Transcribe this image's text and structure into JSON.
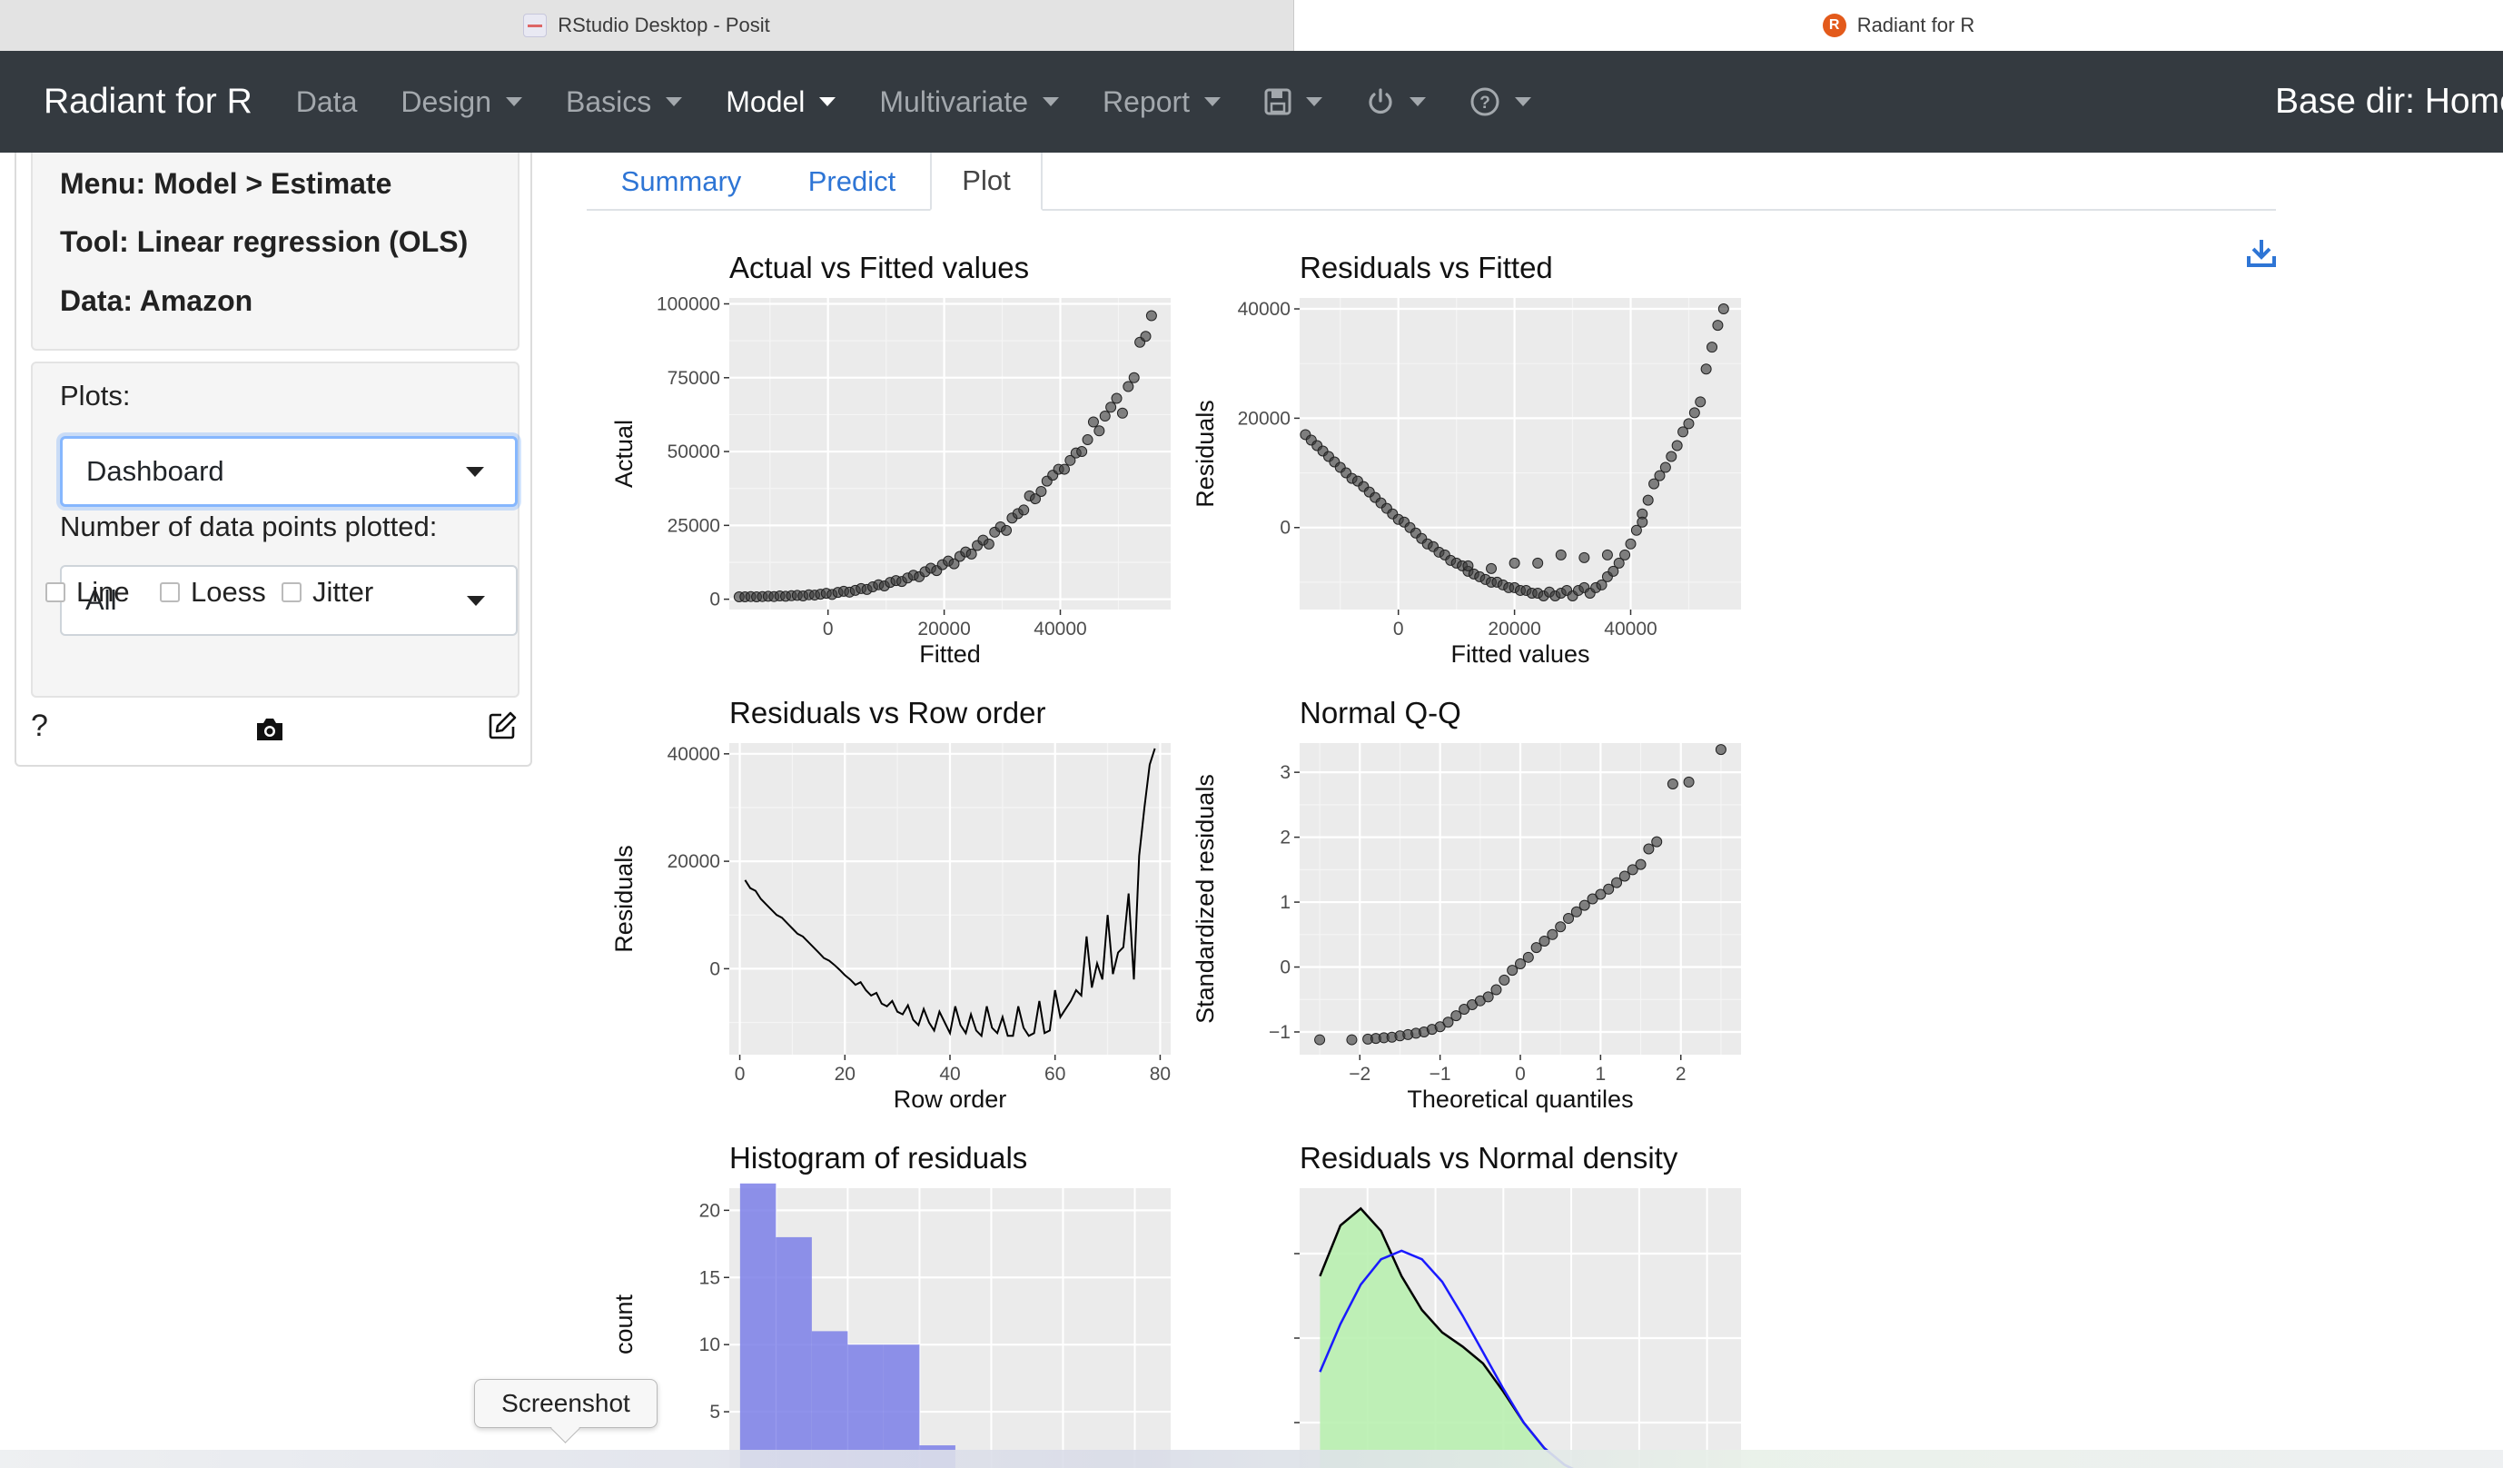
{
  "browser": {
    "tabs": [
      {
        "title": "RStudio Desktop - Posit",
        "active": false
      },
      {
        "title": "Radiant for R",
        "active": true
      }
    ]
  },
  "navbar": {
    "brand": "Radiant for R",
    "items": [
      {
        "label": "Data",
        "dropdown": false,
        "active": false
      },
      {
        "label": "Design",
        "dropdown": true,
        "active": false
      },
      {
        "label": "Basics",
        "dropdown": true,
        "active": false
      },
      {
        "label": "Model",
        "dropdown": true,
        "active": true
      },
      {
        "label": "Multivariate",
        "dropdown": true,
        "active": false
      },
      {
        "label": "Report",
        "dropdown": true,
        "active": false
      }
    ],
    "icons": [
      "save-icon",
      "power-icon",
      "help-icon"
    ],
    "base_dir": "Base dir: Home"
  },
  "sidebar": {
    "menu": "Menu: Model > Estimate",
    "tool": "Tool: Linear regression (OLS)",
    "data": "Data: Amazon",
    "plots_label": "Plots:",
    "plots_value": "Dashboard",
    "points_label": "Number of data points plotted:",
    "points_value": "All",
    "checkboxes": [
      {
        "label": "Line",
        "checked": false
      },
      {
        "label": "Loess",
        "checked": false
      },
      {
        "label": "Jitter",
        "checked": false
      }
    ],
    "help": "?"
  },
  "main": {
    "tabs": [
      "Summary",
      "Predict",
      "Plot"
    ],
    "active_tab": "Plot"
  },
  "tooltip": "Screenshot",
  "chart_data": [
    {
      "type": "scatter",
      "title": "Actual vs Fitted values",
      "xlabel": "Fitted",
      "ylabel": "Actual",
      "xlim": [
        -17000,
        59000
      ],
      "ylim": [
        -3500,
        102000
      ],
      "xticks": [
        0,
        20000,
        40000
      ],
      "yticks": [
        0,
        25000,
        50000,
        75000,
        100000
      ],
      "x": [
        -15300,
        -14300,
        -13300,
        -12300,
        -11300,
        -10300,
        -9300,
        -8300,
        -7300,
        -6300,
        -5300,
        -4300,
        -3300,
        -2300,
        -1300,
        -300,
        700,
        1700,
        2700,
        3700,
        4700,
        5700,
        6700,
        7700,
        8700,
        9700,
        10700,
        11700,
        12700,
        13700,
        14700,
        15700,
        16700,
        17700,
        18700,
        19700,
        20700,
        21700,
        22700,
        23700,
        24700,
        25700,
        26700,
        27700,
        28700,
        29700,
        30700,
        31700,
        32700,
        33700,
        34700,
        35700,
        36700,
        37700,
        38700,
        39700,
        40700,
        41700,
        42700,
        43700,
        44700,
        45700,
        46700,
        47700,
        48700,
        49700,
        50700,
        51700,
        52700,
        53700,
        54700,
        55700
      ],
      "y": [
        800,
        800,
        900,
        800,
        900,
        1000,
        900,
        1100,
        1000,
        1200,
        1300,
        1100,
        1500,
        1400,
        1700,
        2000,
        1600,
        2300,
        2700,
        2400,
        3000,
        3600,
        3300,
        4200,
        4900,
        4500,
        5700,
        6300,
        6000,
        7200,
        8100,
        7600,
        9300,
        10500,
        9700,
        11700,
        12900,
        12000,
        14500,
        16000,
        15300,
        18200,
        20000,
        18700,
        22700,
        24500,
        23300,
        27500,
        29000,
        30200,
        35000,
        34000,
        36500,
        40000,
        42000,
        44000,
        44000,
        47000,
        49500,
        50000,
        54000,
        60000,
        57000,
        62000,
        65000,
        68000,
        63000,
        72000,
        75000,
        87000,
        89000,
        96000
      ]
    },
    {
      "type": "scatter",
      "title": "Residuals vs Fitted",
      "xlabel": "Fitted values",
      "ylabel": "Residuals",
      "xlim": [
        -17000,
        59000
      ],
      "ylim": [
        -15000,
        42000
      ],
      "xticks": [
        0,
        20000,
        40000
      ],
      "yticks": [
        0,
        20000,
        40000
      ],
      "x": [
        -16000,
        -15000,
        -14000,
        -13000,
        -12000,
        -11000,
        -10000,
        -9000,
        -8000,
        -7000,
        -6000,
        -5000,
        -4000,
        -3000,
        -2000,
        -1000,
        0,
        1000,
        2000,
        3000,
        4000,
        5000,
        6000,
        7000,
        8000,
        9000,
        10000,
        11000,
        12000,
        13000,
        14000,
        15000,
        16000,
        17000,
        18000,
        19000,
        20000,
        21000,
        22000,
        23000,
        24000,
        25000,
        26000,
        27000,
        28000,
        29000,
        30000,
        31000,
        32000,
        33000,
        34000,
        35000,
        36000,
        37000,
        38000,
        39000,
        40000,
        41000,
        42000,
        43000,
        44000,
        45000,
        46000,
        47000,
        48000,
        49000,
        50000,
        51000,
        52000,
        53000,
        54000,
        55000,
        56000,
        12000,
        16000,
        20000,
        24000,
        28000,
        32000,
        36000,
        42000
      ],
      "y": [
        17000,
        16000,
        15000,
        14000,
        13000,
        12000,
        11000,
        10000,
        9000,
        8500,
        7500,
        6500,
        5500,
        4500,
        3500,
        2500,
        1500,
        1000,
        0,
        -1000,
        -2000,
        -3000,
        -3500,
        -4500,
        -5000,
        -6000,
        -6500,
        -7000,
        -8000,
        -8500,
        -9000,
        -9500,
        -10000,
        -10000,
        -10500,
        -11000,
        -11000,
        -11500,
        -11500,
        -12000,
        -12000,
        -12500,
        -11800,
        -12500,
        -12000,
        -11500,
        -12500,
        -11500,
        -11000,
        -12000,
        -11000,
        -10500,
        -9000,
        -8000,
        -6500,
        -5000,
        -3000,
        -500,
        2500,
        5000,
        8000,
        9500,
        11000,
        13000,
        15000,
        17500,
        19000,
        21000,
        23000,
        29000,
        33000,
        37000,
        40000,
        -7000,
        -7500,
        -6500,
        -6500,
        -5000,
        -5500,
        -5000,
        1000
      ]
    },
    {
      "type": "line",
      "title": "Residuals vs Row order",
      "xlabel": "Row order",
      "ylabel": "Residuals",
      "xlim": [
        -2,
        82
      ],
      "ylim": [
        -16000,
        42000
      ],
      "xticks": [
        0,
        20,
        40,
        60,
        80
      ],
      "yticks": [
        0,
        20000,
        40000
      ],
      "x": [
        1,
        2,
        3,
        4,
        5,
        6,
        7,
        8,
        9,
        10,
        11,
        12,
        13,
        14,
        15,
        16,
        17,
        18,
        19,
        20,
        21,
        22,
        23,
        24,
        25,
        26,
        27,
        28,
        29,
        30,
        31,
        32,
        33,
        34,
        35,
        36,
        37,
        38,
        39,
        40,
        41,
        42,
        43,
        44,
        45,
        46,
        47,
        48,
        49,
        50,
        51,
        52,
        53,
        54,
        55,
        56,
        57,
        58,
        59,
        60,
        61,
        62,
        63,
        64,
        65,
        66,
        67,
        68,
        69,
        70,
        71,
        72,
        73,
        74,
        75,
        76,
        77,
        78,
        79
      ],
      "y": [
        16500,
        15000,
        14500,
        13000,
        12000,
        11000,
        10000,
        9500,
        8500,
        7500,
        6500,
        6000,
        5000,
        4000,
        3000,
        2000,
        1500,
        700,
        -200,
        -1200,
        -2000,
        -3000,
        -2500,
        -4000,
        -5000,
        -4500,
        -6500,
        -7000,
        -6000,
        -8000,
        -8500,
        -6800,
        -9500,
        -10500,
        -7500,
        -10000,
        -11500,
        -8000,
        -10000,
        -12000,
        -7000,
        -10500,
        -12000,
        -8500,
        -11500,
        -12500,
        -7000,
        -11000,
        -12000,
        -9000,
        -12500,
        -12500,
        -7000,
        -11000,
        -12500,
        -12000,
        -6000,
        -12000,
        -11500,
        -4000,
        -9000,
        -7500,
        -6000,
        -4000,
        -5000,
        6000,
        -3500,
        1000,
        -2000,
        10000,
        -1000,
        3000,
        4000,
        14000,
        -2000,
        21000,
        30000,
        38000,
        41000
      ]
    },
    {
      "type": "scatter",
      "title": "Normal Q-Q",
      "xlabel": "Theoretical quantiles",
      "ylabel": "Standardized residuals",
      "xlim": [
        -2.75,
        2.75
      ],
      "ylim": [
        -1.35,
        3.45
      ],
      "xticks": [
        -2,
        -1,
        0,
        1,
        2
      ],
      "yticks": [
        -1,
        0,
        1,
        2,
        3
      ],
      "x": [
        -2.5,
        -2.1,
        -1.9,
        -1.8,
        -1.7,
        -1.6,
        -1.5,
        -1.4,
        -1.3,
        -1.2,
        -1.1,
        -1.0,
        -0.9,
        -0.8,
        -0.7,
        -0.6,
        -0.5,
        -0.4,
        -0.3,
        -0.2,
        -0.1,
        0.0,
        0.1,
        0.2,
        0.3,
        0.4,
        0.5,
        0.6,
        0.7,
        0.8,
        0.9,
        1.0,
        1.1,
        1.2,
        1.3,
        1.4,
        1.5,
        1.6,
        1.7,
        1.9,
        2.1,
        2.5
      ],
      "y": [
        -1.12,
        -1.12,
        -1.11,
        -1.1,
        -1.09,
        -1.08,
        -1.06,
        -1.04,
        -1.02,
        -1.0,
        -0.96,
        -0.92,
        -0.85,
        -0.75,
        -0.65,
        -0.58,
        -0.52,
        -0.46,
        -0.35,
        -0.2,
        -0.05,
        0.05,
        0.15,
        0.3,
        0.4,
        0.5,
        0.62,
        0.75,
        0.85,
        0.95,
        1.05,
        1.12,
        1.2,
        1.3,
        1.4,
        1.5,
        1.58,
        1.82,
        1.93,
        2.82,
        2.85,
        3.35
      ]
    },
    {
      "type": "bar",
      "title": "Histogram of residuals",
      "xlabel": "",
      "ylabel": "count",
      "bin_edges": [
        -15000,
        -10000,
        -5000,
        0,
        5000,
        10000,
        15000,
        20000,
        25000,
        30000,
        35000,
        40000
      ],
      "values": [
        22,
        18,
        11,
        10,
        10,
        2.5,
        0,
        0,
        0,
        0,
        0
      ],
      "ylim": [
        0,
        23
      ],
      "yticks": [
        5,
        10,
        15,
        20
      ],
      "color": "#7b7fe8"
    },
    {
      "type": "area",
      "title": "Residuals vs Normal density",
      "xlabel": "",
      "ylabel": "",
      "xlim": [
        -20000,
        45000
      ],
      "x": [
        -17000,
        -14000,
        -11000,
        -8000,
        -5000,
        -2000,
        1000,
        4000,
        7000,
        10000,
        13000,
        16000,
        19000,
        22000,
        25000,
        28000,
        31000
      ],
      "density": [
        0.72,
        0.9,
        0.96,
        0.88,
        0.72,
        0.6,
        0.52,
        0.47,
        0.41,
        0.31,
        0.2,
        0.11,
        0.05,
        0.015,
        0.0,
        0.0,
        0.0
      ],
      "normal": [
        0.38,
        0.55,
        0.69,
        0.78,
        0.81,
        0.78,
        0.7,
        0.58,
        0.45,
        0.32,
        0.2,
        0.11,
        0.05,
        0.015,
        0.0,
        0.0,
        0.0
      ],
      "colors": {
        "density_line": "#000000",
        "density_fill": "#b9f0b0",
        "normal_line": "#1a1aff"
      }
    }
  ]
}
